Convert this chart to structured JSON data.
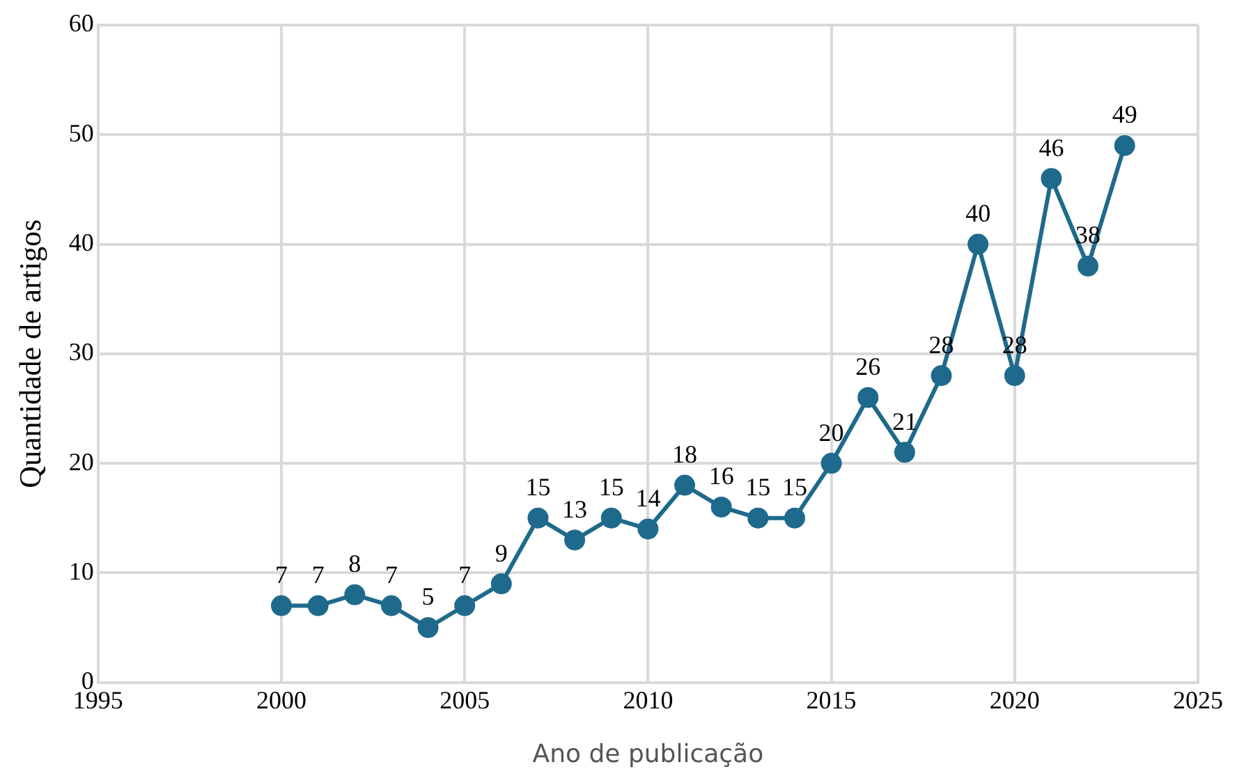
{
  "chart_data": {
    "type": "line",
    "xlabel": "Ano de publicação",
    "ylabel": "Quantidade de artigos",
    "x": [
      2000,
      2001,
      2002,
      2003,
      2004,
      2005,
      2006,
      2007,
      2008,
      2009,
      2010,
      2011,
      2012,
      2013,
      2014,
      2015,
      2016,
      2017,
      2018,
      2019,
      2020,
      2021,
      2022,
      2023
    ],
    "series": [
      {
        "color": "#1f6a8c",
        "values": [
          7,
          7,
          8,
          7,
          5,
          7,
          9,
          15,
          13,
          15,
          14,
          18,
          16,
          15,
          15,
          20,
          26,
          21,
          28,
          40,
          28,
          46,
          38,
          49
        ]
      }
    ],
    "xlim": [
      1995,
      2025
    ],
    "xticks": [
      1995,
      2000,
      2005,
      2010,
      2015,
      2020,
      2025
    ],
    "ylim": [
      0,
      60
    ],
    "yticks": [
      0,
      10,
      20,
      30,
      40,
      50,
      60
    ],
    "grid": true,
    "legend": false,
    "marker": "circle",
    "line_style": "solid",
    "data_labels": true
  }
}
